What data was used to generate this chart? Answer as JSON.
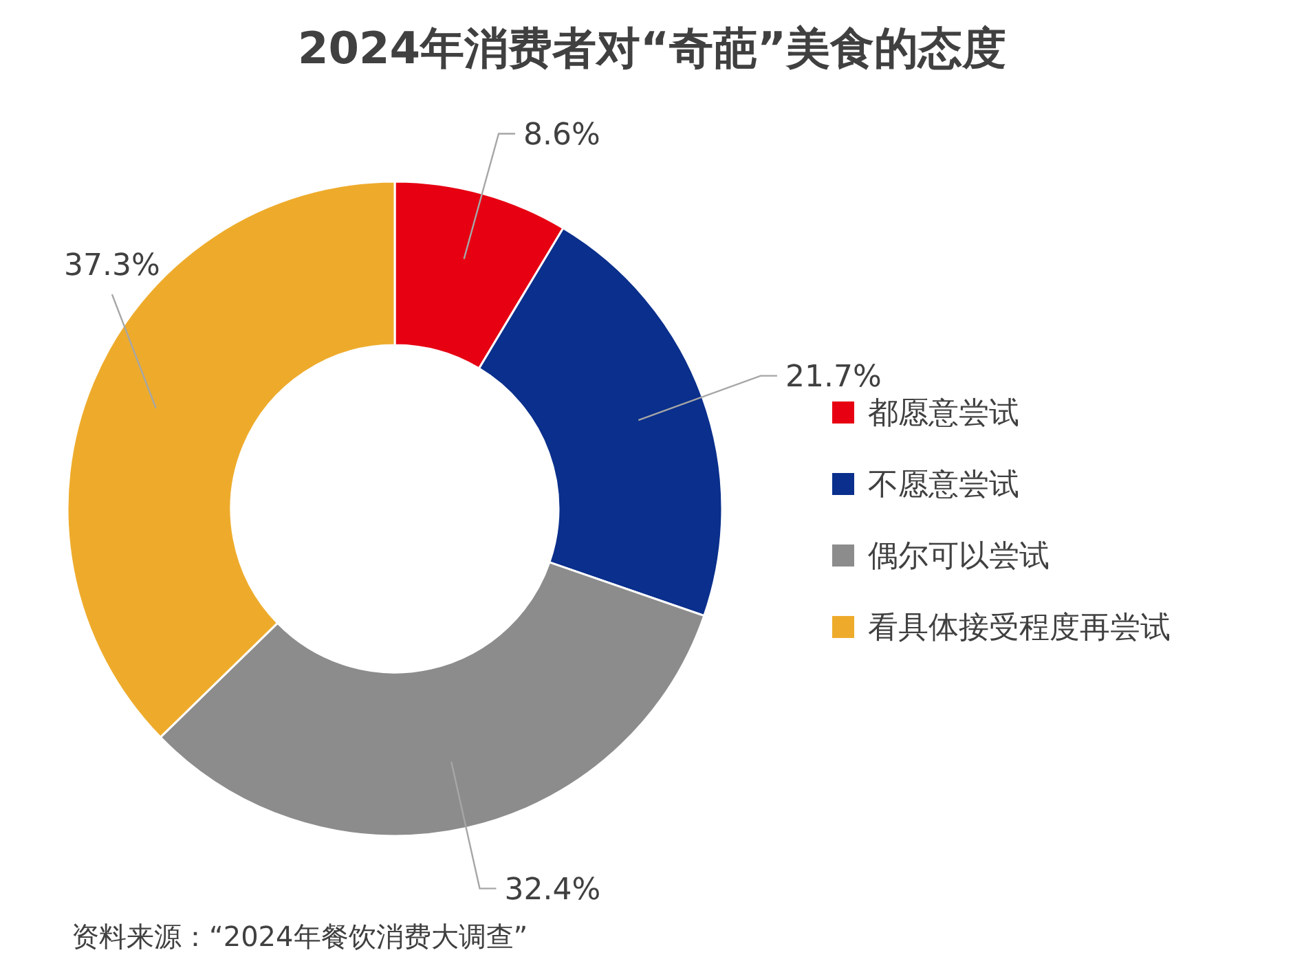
{
  "chart_data": {
    "type": "donut",
    "title": "2024年消费者对“奇葩”美食的态度",
    "categories": [
      "都愿意尝试",
      "不愿意尝试",
      "偶尔可以尝试",
      "看具体接受程度再尝试"
    ],
    "values": [
      8.6,
      21.7,
      32.4,
      37.3
    ],
    "value_labels": [
      "8.6%",
      "21.7%",
      "32.4%",
      "37.3%"
    ],
    "colors": [
      "#e60012",
      "#0a2f8c",
      "#8c8c8c",
      "#eeab2b"
    ],
    "legend": "right",
    "annotations": [
      "资料来源：“2024年餐饮消费大调查”"
    ]
  }
}
